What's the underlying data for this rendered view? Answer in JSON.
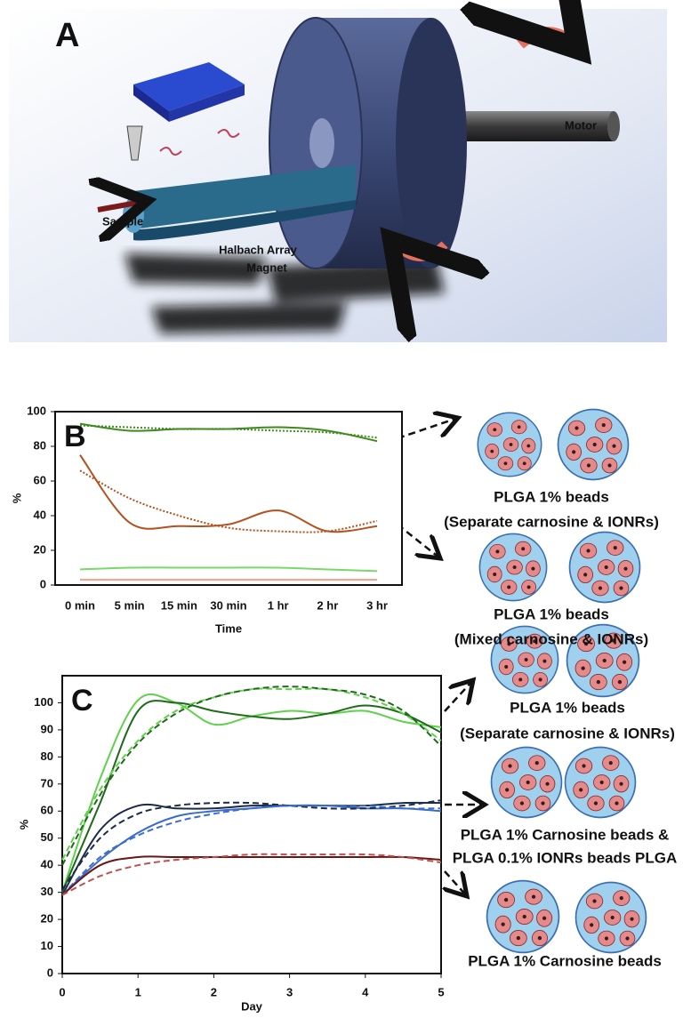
{
  "panel_a": {
    "label": "A",
    "motor": "Motor",
    "sample": "Sample",
    "magnet": [
      "Halbach Array",
      "Magnet"
    ]
  },
  "chart_data": [
    {
      "type": "line",
      "label": "B",
      "x_label": "Time",
      "y_label": "%",
      "categories": [
        "0 min",
        "5 min",
        "15 min",
        "30 min",
        "1 hr",
        "2 hr",
        "3 hr"
      ],
      "ylim": [
        0,
        100
      ],
      "yticks": [
        0,
        20,
        40,
        60,
        80,
        100
      ],
      "series": [
        {
          "color": "#3f8a1e",
          "dash": "solid",
          "values": [
            93,
            89,
            90,
            90,
            91,
            89,
            83
          ]
        },
        {
          "color": "#3f8a1e",
          "dash": "dotted",
          "values": [
            92,
            91,
            90,
            90,
            89,
            88,
            85
          ]
        },
        {
          "color": "#b5501f",
          "dash": "solid",
          "values": [
            75,
            36,
            34,
            35,
            43,
            31,
            34
          ]
        },
        {
          "color": "#b5501f",
          "dash": "dotted",
          "values": [
            66,
            50,
            40,
            33,
            31,
            31,
            37
          ]
        },
        {
          "color": "#79d86a",
          "dash": "solid",
          "values": [
            9,
            10,
            10,
            10,
            10,
            9,
            8
          ]
        },
        {
          "color": "#f0a08a",
          "dash": "solid",
          "values": [
            3,
            3,
            3,
            3,
            3,
            3,
            3
          ]
        }
      ]
    },
    {
      "type": "line",
      "label": "C",
      "x_label": "Day",
      "y_label": "%",
      "x": [
        0,
        0.5,
        1,
        1.5,
        2,
        2.5,
        3,
        3.5,
        4,
        4.5,
        5
      ],
      "xlim": [
        0,
        5
      ],
      "xticks": [
        0,
        1,
        2,
        3,
        4,
        5
      ],
      "ylim": [
        0,
        110
      ],
      "yticks": [
        0,
        10,
        20,
        30,
        40,
        50,
        60,
        70,
        80,
        90,
        100
      ],
      "series": [
        {
          "color": "#5fd14a",
          "dash": "solid",
          "values": [
            30,
            72,
            101,
            100,
            92,
            95,
            97,
            96,
            97,
            93,
            91
          ]
        },
        {
          "color": "#1f6a1a",
          "dash": "solid",
          "values": [
            30,
            63,
            97,
            100,
            97,
            95,
            94,
            96,
            99,
            96,
            89
          ]
        },
        {
          "color": "#5fd14a",
          "dash": "dashed",
          "values": [
            42,
            68,
            86,
            97,
            102,
            105,
            105,
            105,
            102,
            96,
            86
          ]
        },
        {
          "color": "#1f6a1a",
          "dash": "dashed",
          "values": [
            40,
            66,
            85,
            96,
            102,
            105,
            106,
            105,
            103,
            97,
            84
          ]
        },
        {
          "color": "#1c2a4a",
          "dash": "solid",
          "values": [
            29,
            53,
            62,
            61,
            61,
            62,
            62,
            62,
            62,
            63,
            63
          ]
        },
        {
          "color": "#3a6ccc",
          "dash": "solid",
          "values": [
            29,
            42,
            52,
            58,
            60,
            61,
            62,
            62,
            61,
            61,
            60
          ]
        },
        {
          "color": "#1c2a4a",
          "dash": "dashed",
          "values": [
            31,
            50,
            59,
            62,
            63,
            63,
            62,
            61,
            61,
            62,
            64
          ]
        },
        {
          "color": "#3a6ccc",
          "dash": "dashed",
          "values": [
            29,
            43,
            51,
            56,
            59,
            61,
            62,
            62,
            62,
            61,
            61
          ]
        },
        {
          "color": "#6a1414",
          "dash": "solid",
          "values": [
            29,
            40,
            43,
            43,
            43,
            43,
            43,
            43,
            43,
            43,
            42
          ]
        },
        {
          "color": "#c0504d",
          "dash": "dashed",
          "values": [
            29,
            36,
            40,
            42,
            43,
            44,
            44,
            44,
            44,
            43,
            41
          ]
        }
      ]
    }
  ],
  "bead_captions": {
    "b": [
      [
        "PLGA 1% beads",
        "(Separate carnosine & IONRs)"
      ],
      [
        "PLGA 1% beads",
        "(Mixed carnosine & IONRs)"
      ]
    ],
    "c": [
      [
        "PLGA 1% beads",
        "(Separate carnosine & IONRs)"
      ],
      [
        "PLGA 1% Carnosine beads &",
        "PLGA 0.1% IONRs beads PLGA"
      ],
      [
        "PLGA 1% Carnosine beads"
      ]
    ]
  }
}
